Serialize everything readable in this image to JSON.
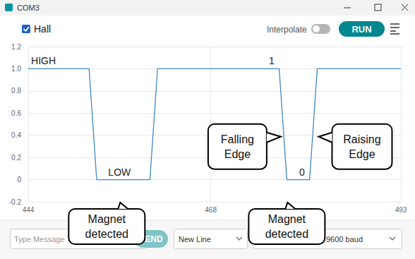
{
  "window": {
    "title": "COM3",
    "interpolate": "Interpolate",
    "run": "RUN",
    "message_placeholder": "Type Message",
    "send": "SEND",
    "line_ending": "New Line",
    "baud": "9600 baud"
  },
  "chart_data": {
    "type": "line",
    "x": [
      444,
      452,
      453,
      460,
      461,
      477,
      478,
      481,
      482,
      493
    ],
    "series": [
      {
        "name": "Hall",
        "color": "#3d86c6",
        "values": [
          1,
          1,
          0,
          0,
          1,
          1,
          0,
          0,
          1,
          1
        ]
      }
    ],
    "xlim": [
      444,
      493
    ],
    "xticks": [
      444,
      468,
      493
    ],
    "ylim": [
      -0.2,
      1.2
    ],
    "yticks": [
      -0.2,
      0,
      0.2,
      0.4,
      0.6,
      0.8,
      {
        "value": 1,
        "label": "1.0"
      },
      1.2
    ],
    "grid": true,
    "annotations": [
      {
        "text": "HIGH",
        "x": 446,
        "y": 1
      },
      {
        "text": "LOW",
        "x": 456,
        "y": 0
      },
      {
        "text": "1",
        "x": 476,
        "y": 1
      },
      {
        "text": "0",
        "x": 480,
        "y": 0
      }
    ],
    "callouts": [
      {
        "text": "Magnet\ndetected",
        "x": 456,
        "y": -0.2
      },
      {
        "text": "Magnet\ndetected",
        "x": 478,
        "y": -0.2
      },
      {
        "text": "Falling\nEdge",
        "x": 477.4,
        "y": 0.4
      },
      {
        "text": "Raising\nEdge",
        "x": 482,
        "y": 0.4
      }
    ]
  }
}
